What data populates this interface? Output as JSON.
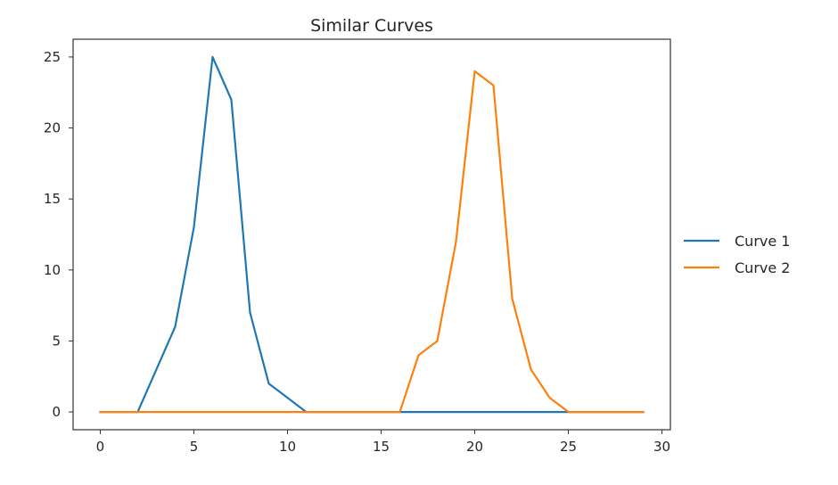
{
  "chart_data": {
    "type": "line",
    "title": "Similar Curves",
    "xlabel": "",
    "ylabel": "",
    "xlim": [
      -1.45,
      30.45
    ],
    "ylim": [
      -1.25,
      26.25
    ],
    "xticks": [
      0,
      5,
      10,
      15,
      20,
      25,
      30
    ],
    "yticks": [
      0,
      5,
      10,
      15,
      20,
      25
    ],
    "grid": false,
    "legend_position": "center-right outside",
    "x": [
      0,
      1,
      2,
      3,
      4,
      5,
      6,
      7,
      8,
      9,
      10,
      11,
      12,
      13,
      14,
      15,
      16,
      17,
      18,
      19,
      20,
      21,
      22,
      23,
      24,
      25,
      26,
      27,
      28,
      29
    ],
    "series": [
      {
        "name": "Curve 1",
        "color": "#1f77b4",
        "values": [
          0,
          0,
          0,
          3,
          6,
          13,
          25,
          22,
          7,
          2,
          1,
          0,
          0,
          0,
          0,
          0,
          0,
          0,
          0,
          0,
          0,
          0,
          0,
          0,
          0,
          0,
          0,
          0,
          0,
          0
        ]
      },
      {
        "name": "Curve 2",
        "color": "#ff7f0e",
        "values": [
          0,
          0,
          0,
          0,
          0,
          0,
          0,
          0,
          0,
          0,
          0,
          0,
          0,
          0,
          0,
          0,
          0,
          4,
          5,
          12,
          24,
          23,
          8,
          3,
          1,
          0,
          0,
          0,
          0,
          0
        ]
      }
    ]
  }
}
